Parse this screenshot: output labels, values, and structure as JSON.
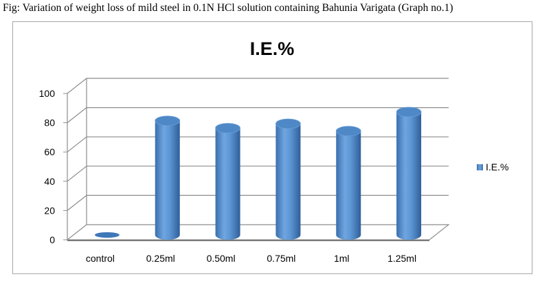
{
  "caption": "Fig: Variation of weight loss of mild steel in 0.1N HCl solution containing Bahunia Varigata (Graph no.1)",
  "chart_data": {
    "type": "bar",
    "title": "I.E.%",
    "categories": [
      "control",
      "0.25ml",
      "0.50ml",
      "0.75ml",
      "1ml",
      "1.25ml"
    ],
    "series": [
      {
        "name": "I.E.%",
        "values": [
          0,
          78,
          73,
          76,
          71,
          84
        ]
      }
    ],
    "ylim": [
      0,
      100
    ],
    "yticks": [
      "0",
      "20",
      "40",
      "60",
      "80",
      "100"
    ],
    "grid": true,
    "legend_position": "right",
    "bar_color": "#4a86c8"
  }
}
